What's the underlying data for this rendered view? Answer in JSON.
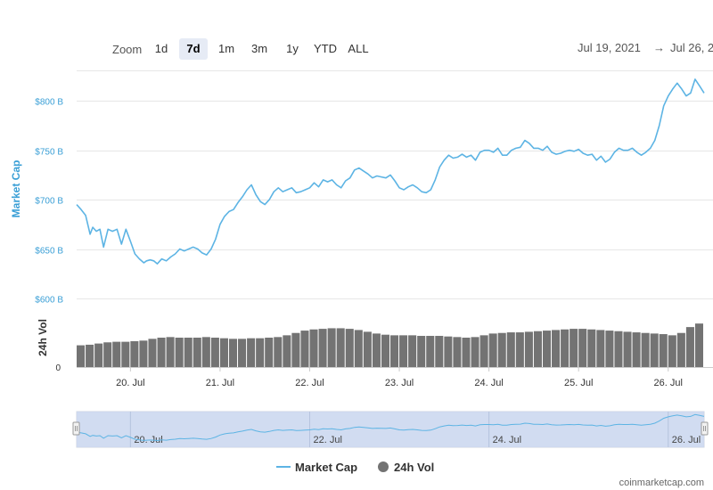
{
  "toolbar": {
    "zoom_label": "Zoom",
    "buttons": [
      "1d",
      "7d",
      "1m",
      "3m",
      "1y",
      "YTD",
      "ALL"
    ],
    "active": "7d",
    "date_from": "Jul 19, 2021",
    "arrow": "→",
    "date_to": "Jul 26, 2"
  },
  "colors": {
    "market_cap": "#5db4e4",
    "volume": "#737373",
    "navigator_fill": "#c9d6ef",
    "accent_axis": "#3a9fd6"
  },
  "legend": {
    "market_cap": "Market Cap",
    "volume": "24h Vol"
  },
  "credit": "coinmarketcap.com",
  "chart_data": {
    "type": "line",
    "title": "",
    "ylabel": "Market Cap",
    "ylabel_volume": "24h Vol",
    "y_ticks": [
      "$800 B",
      "$750 B",
      "$700 B",
      "$650 B",
      "$600 B"
    ],
    "y_tick_values": [
      800,
      750,
      700,
      650,
      600
    ],
    "volume_tick": "0",
    "ylim": [
      590,
      830
    ],
    "xlim": [
      19.4,
      26.4
    ],
    "x_ticks": [
      "20. Jul",
      "21. Jul",
      "22. Jul",
      "23. Jul",
      "24. Jul",
      "25. Jul",
      "26. Jul"
    ],
    "x_tick_values": [
      20,
      21,
      22,
      23,
      24,
      25,
      26
    ],
    "navigator_ticks": [
      "20. Jul",
      "22. Jul",
      "24. Jul",
      "26. Jul"
    ],
    "navigator_tick_values": [
      20,
      22,
      24,
      26
    ],
    "series": [
      {
        "name": "Market Cap",
        "x": [
          19.4,
          19.45,
          19.5,
          19.55,
          19.58,
          19.62,
          19.66,
          19.7,
          19.75,
          19.8,
          19.85,
          19.9,
          19.95,
          20.0,
          20.05,
          20.1,
          20.15,
          20.18,
          20.22,
          20.26,
          20.3,
          20.35,
          20.4,
          20.45,
          20.5,
          20.55,
          20.6,
          20.65,
          20.7,
          20.75,
          20.8,
          20.85,
          20.9,
          20.95,
          21.0,
          21.05,
          21.1,
          21.15,
          21.2,
          21.25,
          21.3,
          21.35,
          21.4,
          21.45,
          21.5,
          21.55,
          21.6,
          21.65,
          21.7,
          21.75,
          21.8,
          21.85,
          21.9,
          21.95,
          22.0,
          22.05,
          22.1,
          22.15,
          22.2,
          22.25,
          22.3,
          22.35,
          22.4,
          22.45,
          22.5,
          22.55,
          22.6,
          22.65,
          22.7,
          22.75,
          22.8,
          22.85,
          22.9,
          22.95,
          23.0,
          23.05,
          23.1,
          23.15,
          23.2,
          23.25,
          23.3,
          23.35,
          23.4,
          23.45,
          23.5,
          23.55,
          23.6,
          23.65,
          23.7,
          23.75,
          23.8,
          23.85,
          23.9,
          23.95,
          24.0,
          24.05,
          24.1,
          24.15,
          24.2,
          24.25,
          24.3,
          24.35,
          24.4,
          24.45,
          24.5,
          24.55,
          24.6,
          24.65,
          24.7,
          24.75,
          24.8,
          24.85,
          24.9,
          24.95,
          25.0,
          25.05,
          25.1,
          25.15,
          25.2,
          25.25,
          25.3,
          25.35,
          25.4,
          25.45,
          25.5,
          25.55,
          25.6,
          25.65,
          25.7,
          25.75,
          25.8,
          25.85,
          25.9,
          25.95,
          26.0,
          26.05,
          26.1,
          26.15,
          26.2,
          26.25,
          26.3,
          26.35,
          26.4
        ],
        "values": [
          695,
          690,
          684,
          665,
          672,
          668,
          670,
          652,
          670,
          668,
          670,
          655,
          670,
          658,
          645,
          640,
          636,
          638,
          639,
          638,
          635,
          640,
          638,
          642,
          645,
          650,
          648,
          650,
          652,
          650,
          646,
          644,
          650,
          660,
          675,
          683,
          688,
          690,
          697,
          703,
          710,
          715,
          705,
          698,
          695,
          700,
          708,
          712,
          708,
          710,
          712,
          707,
          708,
          710,
          712,
          717,
          713,
          720,
          718,
          720,
          715,
          712,
          719,
          722,
          730,
          732,
          729,
          726,
          722,
          724,
          723,
          722,
          725,
          719,
          712,
          710,
          713,
          715,
          712,
          708,
          707,
          710,
          720,
          733,
          740,
          745,
          742,
          743,
          746,
          743,
          745,
          740,
          748,
          750,
          750,
          748,
          752,
          745,
          745,
          750,
          752,
          753,
          760,
          757,
          752,
          752,
          750,
          754,
          748,
          746,
          747,
          749,
          750,
          749,
          751,
          747,
          745,
          746,
          740,
          744,
          738,
          741,
          748,
          752,
          750,
          750,
          752,
          748,
          745,
          748,
          752,
          760,
          775,
          795,
          805,
          812,
          818,
          812,
          805,
          808,
          822,
          815,
          808
        ]
      },
      {
        "name": "24h Vol",
        "x": [
          19.4,
          19.5,
          19.6,
          19.7,
          19.8,
          19.9,
          20.0,
          20.1,
          20.2,
          20.3,
          20.4,
          20.5,
          20.6,
          20.7,
          20.8,
          20.9,
          21.0,
          21.1,
          21.2,
          21.3,
          21.4,
          21.5,
          21.6,
          21.7,
          21.8,
          21.9,
          22.0,
          22.1,
          22.2,
          22.3,
          22.4,
          22.5,
          22.6,
          22.7,
          22.8,
          22.9,
          23.0,
          23.1,
          23.2,
          23.3,
          23.4,
          23.5,
          23.6,
          23.7,
          23.8,
          23.9,
          24.0,
          24.1,
          24.2,
          24.3,
          24.4,
          24.5,
          24.6,
          24.7,
          24.8,
          24.9,
          25.0,
          25.1,
          25.2,
          25.3,
          25.4,
          25.5,
          25.6,
          25.7,
          25.8,
          25.9,
          26.0,
          26.1,
          26.2,
          26.3,
          26.4
        ],
        "values": [
          0.37,
          0.38,
          0.4,
          0.42,
          0.43,
          0.43,
          0.44,
          0.45,
          0.48,
          0.5,
          0.51,
          0.5,
          0.5,
          0.5,
          0.51,
          0.5,
          0.49,
          0.48,
          0.48,
          0.49,
          0.49,
          0.5,
          0.51,
          0.54,
          0.58,
          0.62,
          0.64,
          0.65,
          0.66,
          0.66,
          0.65,
          0.63,
          0.6,
          0.57,
          0.55,
          0.54,
          0.54,
          0.54,
          0.53,
          0.53,
          0.53,
          0.52,
          0.51,
          0.5,
          0.51,
          0.54,
          0.57,
          0.58,
          0.59,
          0.59,
          0.6,
          0.61,
          0.62,
          0.63,
          0.64,
          0.65,
          0.65,
          0.64,
          0.63,
          0.62,
          0.61,
          0.6,
          0.59,
          0.58,
          0.57,
          0.56,
          0.54,
          0.58,
          0.68,
          0.74,
          0.76
        ]
      }
    ],
    "grid": true,
    "legend_position": "bottom"
  }
}
